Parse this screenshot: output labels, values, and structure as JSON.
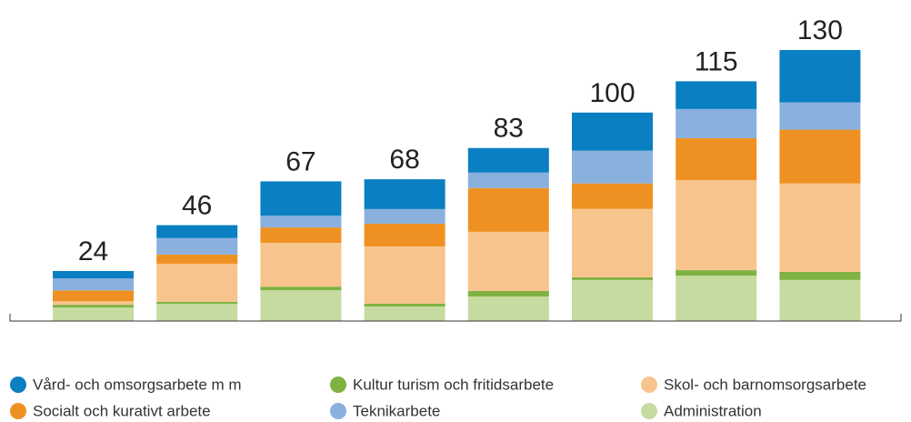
{
  "chart_data": {
    "type": "stacked_bar",
    "categories": [
      null,
      null,
      null,
      null,
      null,
      null,
      null,
      null
    ],
    "totals": [
      24,
      46,
      67,
      68,
      83,
      100,
      115,
      130
    ],
    "series": [
      {
        "name": "Administration",
        "color": "#c5dba0",
        "values": [
          6.5,
          8.3,
          14.8,
          7,
          11.8,
          19.7,
          21.8,
          19.7
        ]
      },
      {
        "name": "Kultur turism och fritidsarbete",
        "color": "#7fb241",
        "values": [
          1.3,
          0.9,
          1.7,
          1.3,
          2.6,
          1.3,
          2.6,
          3.9
        ]
      },
      {
        "name": "Skol- och barnomsorgsarbete",
        "color": "#f8c48d",
        "values": [
          1.7,
          18.3,
          21,
          27.5,
          28.4,
          32.8,
          43.2,
          42.4
        ]
      },
      {
        "name": "Socialt och kurativt arbete",
        "color": "#ef9122",
        "values": [
          5.2,
          4.4,
          7.4,
          10.9,
          21,
          12.2,
          20.1,
          25.8
        ]
      },
      {
        "name": "Teknikarbete",
        "color": "#8ab0de",
        "values": [
          5.8,
          7.9,
          5.7,
          7,
          7.4,
          15.7,
          14,
          13.1
        ]
      },
      {
        "name": "Vård- och omsorgsarbete m m",
        "color": "#0a7fc2",
        "values": [
          3.5,
          6.2,
          16.4,
          14.3,
          11.8,
          18.3,
          13.3,
          25.1
        ]
      }
    ],
    "legend_order": [
      5,
      3,
      1,
      4,
      2,
      0
    ],
    "ylim": [
      0,
      130
    ]
  }
}
